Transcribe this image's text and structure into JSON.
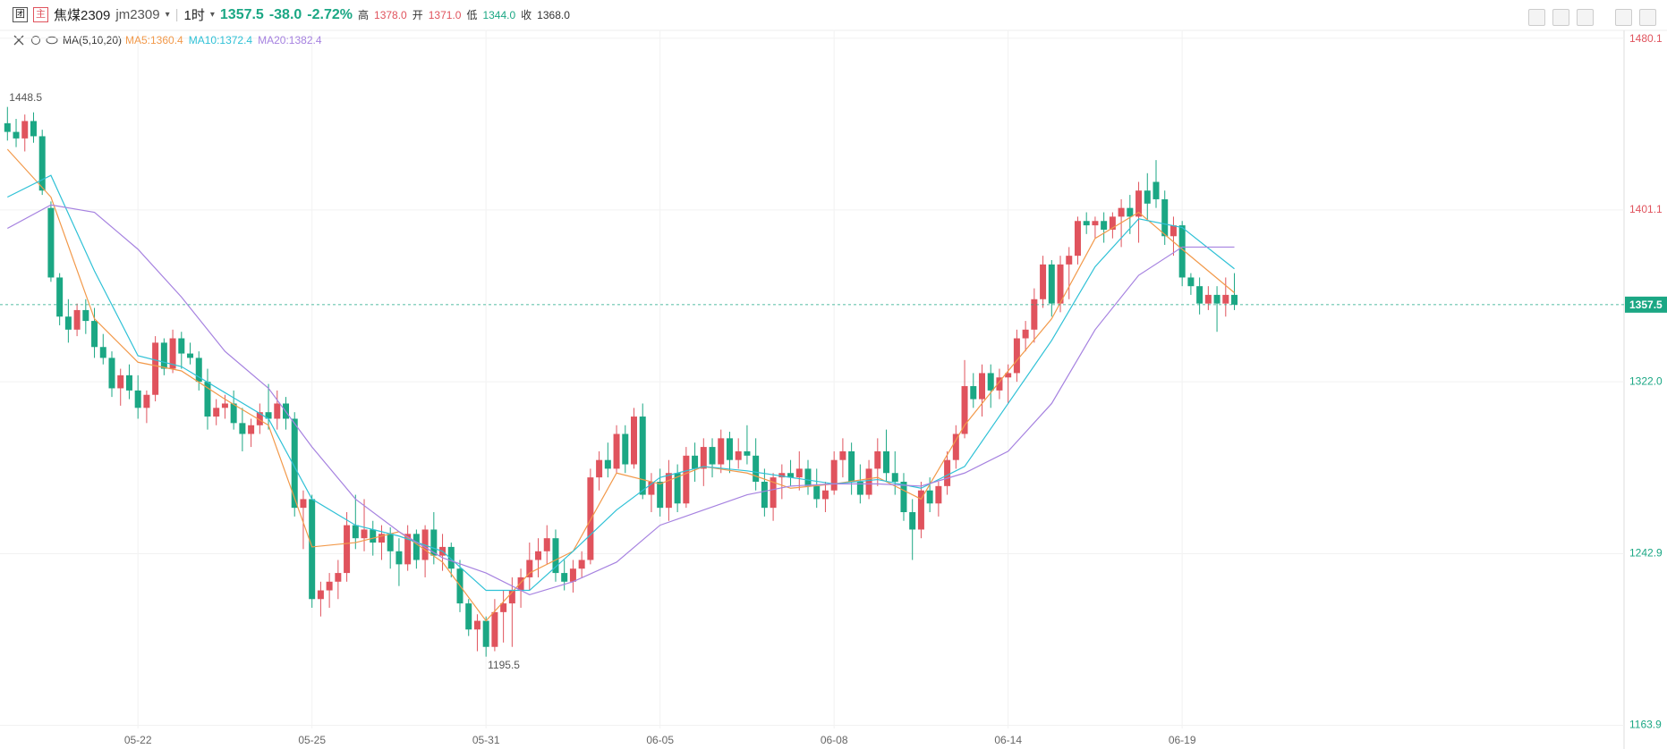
{
  "header": {
    "badges": [
      "团",
      "主"
    ],
    "name": "焦煤2309",
    "code": "jm2309",
    "period": "1时",
    "last": "1357.5",
    "change": "-38.0",
    "change_pct": "-2.72%",
    "stats": [
      {
        "label": "高",
        "value": "1378.0"
      },
      {
        "label": "开",
        "value": "1371.0"
      },
      {
        "label": "低",
        "value": "1344.0"
      },
      {
        "label": "收",
        "value": "1368.0"
      }
    ]
  },
  "chart_data": {
    "type": "candlestick",
    "ma_label": "MA(5,10,20)",
    "up_color": "#e0535d",
    "down_color": "#1ba784",
    "open": [
      1441,
      1437,
      1434,
      1442,
      1435,
      1402,
      1370,
      1352,
      1346,
      1355,
      1350,
      1338,
      1333,
      1319,
      1325,
      1318,
      1310,
      1316,
      1340,
      1328,
      1342,
      1335,
      1333,
      1322,
      1306,
      1310,
      1312,
      1303,
      1298,
      1302,
      1308,
      1305,
      1312,
      1305,
      1264,
      1268,
      1222,
      1226,
      1230,
      1234,
      1256,
      1250,
      1254,
      1248,
      1252,
      1244,
      1238,
      1252,
      1240,
      1254,
      1242,
      1246,
      1236,
      1220,
      1208,
      1212,
      1200,
      1216,
      1220,
      1226,
      1232,
      1240,
      1244,
      1250,
      1234,
      1230,
      1236,
      1240,
      1278,
      1286,
      1282,
      1298,
      1284,
      1306,
      1270,
      1276,
      1264,
      1280,
      1266,
      1288,
      1282,
      1292,
      1284,
      1296,
      1286,
      1290,
      1288,
      1276,
      1264,
      1278,
      1280,
      1278,
      1282,
      1274,
      1268,
      1272,
      1286,
      1290,
      1276,
      1270,
      1282,
      1290,
      1280,
      1276,
      1262,
      1254,
      1272,
      1266,
      1274,
      1286,
      1298,
      1320,
      1314,
      1326,
      1318,
      1324,
      1326,
      1342,
      1346,
      1360,
      1376,
      1358,
      1376,
      1380,
      1396,
      1394,
      1396,
      1392,
      1398,
      1402,
      1398,
      1410,
      1414,
      1406,
      1389,
      1394,
      1370,
      1366,
      1358,
      1362,
      1358,
      1362
    ],
    "high": [
      1448.5,
      1443,
      1445,
      1446,
      1438,
      1405,
      1372,
      1360,
      1358,
      1360,
      1356,
      1344,
      1336,
      1328,
      1330,
      1325,
      1318,
      1343,
      1342,
      1346,
      1345,
      1340,
      1336,
      1328,
      1314,
      1316,
      1318,
      1310,
      1305,
      1312,
      1321,
      1318,
      1315,
      1308,
      1272,
      1270,
      1230,
      1234,
      1240,
      1262,
      1270,
      1268,
      1258,
      1256,
      1255,
      1250,
      1256,
      1254,
      1256,
      1262,
      1252,
      1248,
      1240,
      1222,
      1215,
      1214,
      1222,
      1226,
      1232,
      1236,
      1248,
      1250,
      1256,
      1254,
      1240,
      1240,
      1244,
      1282,
      1290,
      1294,
      1302,
      1302,
      1310,
      1312,
      1280,
      1282,
      1286,
      1284,
      1292,
      1294,
      1296,
      1296,
      1300,
      1299,
      1296,
      1302,
      1296,
      1282,
      1280,
      1284,
      1286,
      1290,
      1286,
      1282,
      1276,
      1290,
      1296,
      1294,
      1284,
      1286,
      1296,
      1300,
      1290,
      1280,
      1268,
      1276,
      1278,
      1276,
      1290,
      1302,
      1332,
      1326,
      1330,
      1330,
      1328,
      1330,
      1346,
      1350,
      1365,
      1380,
      1378,
      1380,
      1384,
      1398,
      1400,
      1398,
      1400,
      1400,
      1406,
      1408,
      1414,
      1418,
      1424,
      1410,
      1398,
      1396,
      1372,
      1370,
      1366,
      1366,
      1370,
      1372
    ],
    "low": [
      1433,
      1430,
      1428,
      1432,
      1408,
      1368,
      1348,
      1340,
      1343,
      1344,
      1333,
      1330,
      1315,
      1311,
      1314,
      1305,
      1303,
      1313,
      1325,
      1326,
      1328,
      1330,
      1318,
      1300,
      1302,
      1305,
      1300,
      1290,
      1292,
      1298,
      1300,
      1300,
      1300,
      1260,
      1245,
      1218,
      1214,
      1218,
      1222,
      1230,
      1245,
      1244,
      1242,
      1240,
      1236,
      1228,
      1235,
      1236,
      1232,
      1238,
      1235,
      1232,
      1216,
      1205,
      1198,
      1195.5,
      1198,
      1202,
      1200,
      1218,
      1226,
      1232,
      1238,
      1230,
      1226,
      1225,
      1232,
      1238,
      1272,
      1278,
      1280,
      1280,
      1282,
      1268,
      1262,
      1260,
      1258,
      1262,
      1264,
      1276,
      1274,
      1278,
      1280,
      1280,
      1282,
      1284,
      1272,
      1260,
      1258,
      1268,
      1274,
      1272,
      1270,
      1264,
      1262,
      1270,
      1278,
      1270,
      1266,
      1268,
      1274,
      1276,
      1270,
      1258,
      1240,
      1250,
      1262,
      1260,
      1270,
      1282,
      1296,
      1310,
      1306,
      1310,
      1314,
      1312,
      1322,
      1336,
      1340,
      1356,
      1352,
      1354,
      1360,
      1376,
      1390,
      1388,
      1386,
      1388,
      1384,
      1390,
      1386,
      1396,
      1402,
      1385,
      1380,
      1366,
      1362,
      1353,
      1355,
      1345,
      1352,
      1355
    ],
    "close": [
      1437,
      1434,
      1442,
      1435,
      1410,
      1370,
      1352,
      1346,
      1355,
      1350,
      1338,
      1333,
      1319,
      1325,
      1318,
      1310,
      1316,
      1340,
      1328,
      1342,
      1335,
      1333,
      1322,
      1306,
      1310,
      1312,
      1303,
      1298,
      1302,
      1308,
      1305,
      1312,
      1305,
      1264,
      1268,
      1222,
      1226,
      1230,
      1234,
      1256,
      1250,
      1254,
      1248,
      1252,
      1244,
      1238,
      1252,
      1240,
      1254,
      1242,
      1246,
      1236,
      1220,
      1208,
      1212,
      1200,
      1216,
      1220,
      1226,
      1232,
      1240,
      1244,
      1250,
      1234,
      1230,
      1236,
      1240,
      1278,
      1286,
      1282,
      1298,
      1284,
      1306,
      1270,
      1276,
      1264,
      1280,
      1266,
      1288,
      1282,
      1292,
      1284,
      1296,
      1286,
      1290,
      1288,
      1276,
      1264,
      1278,
      1280,
      1278,
      1282,
      1274,
      1268,
      1272,
      1286,
      1290,
      1276,
      1270,
      1282,
      1290,
      1280,
      1276,
      1262,
      1254,
      1272,
      1266,
      1274,
      1286,
      1298,
      1320,
      1314,
      1326,
      1318,
      1324,
      1326,
      1342,
      1346,
      1360,
      1376,
      1358,
      1376,
      1380,
      1396,
      1394,
      1396,
      1392,
      1398,
      1402,
      1398,
      1410,
      1404,
      1406,
      1389,
      1394,
      1370,
      1366,
      1358,
      1362,
      1358,
      1362,
      1357.5
    ],
    "series": [
      {
        "name": "MA5:1360.4",
        "color": "#f2994a",
        "x": [
          0,
          5,
          10,
          15,
          20,
          25,
          30,
          35,
          40,
          45,
          50,
          55,
          60,
          65,
          70,
          75,
          80,
          85,
          90,
          95,
          100,
          105,
          110,
          115,
          120,
          125,
          130,
          135,
          141
        ],
        "values": [
          1429,
          1407,
          1351,
          1331,
          1327,
          1314,
          1302,
          1246,
          1248,
          1253,
          1239,
          1212,
          1234,
          1244,
          1280,
          1275,
          1283,
          1280,
          1273,
          1275,
          1278,
          1268,
          1302,
          1327,
          1351,
          1388,
          1400,
          1383,
          1363
        ]
      },
      {
        "name": "MA10:1372.4",
        "color": "#2fc1d6",
        "x": [
          0,
          5,
          10,
          15,
          20,
          25,
          30,
          35,
          40,
          45,
          50,
          55,
          60,
          65,
          70,
          75,
          80,
          85,
          90,
          95,
          100,
          105,
          110,
          115,
          120,
          125,
          130,
          135,
          141
        ],
        "values": [
          1407,
          1417,
          1373,
          1334,
          1329,
          1317,
          1305,
          1268,
          1256,
          1251,
          1244,
          1226,
          1226,
          1244,
          1263,
          1278,
          1283,
          1281,
          1278,
          1275,
          1277,
          1273,
          1283,
          1312,
          1341,
          1375,
          1397,
          1393,
          1374
        ]
      },
      {
        "name": "MA20:1382.4",
        "color": "#a682e0",
        "x": [
          0,
          5,
          10,
          15,
          20,
          25,
          30,
          35,
          40,
          45,
          50,
          55,
          60,
          65,
          70,
          75,
          80,
          85,
          90,
          95,
          100,
          105,
          110,
          115,
          120,
          125,
          130,
          135,
          141
        ],
        "values": [
          1392.6,
          1403.4,
          1400,
          1383,
          1361,
          1336,
          1319,
          1292,
          1268,
          1253,
          1241,
          1234,
          1224,
          1230,
          1239,
          1256,
          1263,
          1270,
          1274,
          1275,
          1275,
          1274,
          1280,
          1290,
          1312,
          1346,
          1371,
          1384,
          1384
        ]
      }
    ],
    "ylim": [
      1163.9,
      1480.1
    ],
    "yticks": [
      {
        "value": 1163.9,
        "label": "1163.9"
      },
      1242.9,
      {
        "value": 1322.0,
        "label": "1322.0"
      },
      1401.1,
      1480.1
    ],
    "xticks": [
      {
        "value": 15,
        "label": "05-22"
      },
      {
        "value": 35,
        "label": "05-25"
      },
      {
        "value": 55,
        "label": "05-31"
      },
      {
        "value": 75,
        "label": "06-05"
      },
      {
        "value": 95,
        "label": "06-08"
      },
      {
        "value": 115,
        "label": "06-14"
      },
      {
        "value": 135,
        "label": "06-19"
      }
    ],
    "grid": true
  }
}
